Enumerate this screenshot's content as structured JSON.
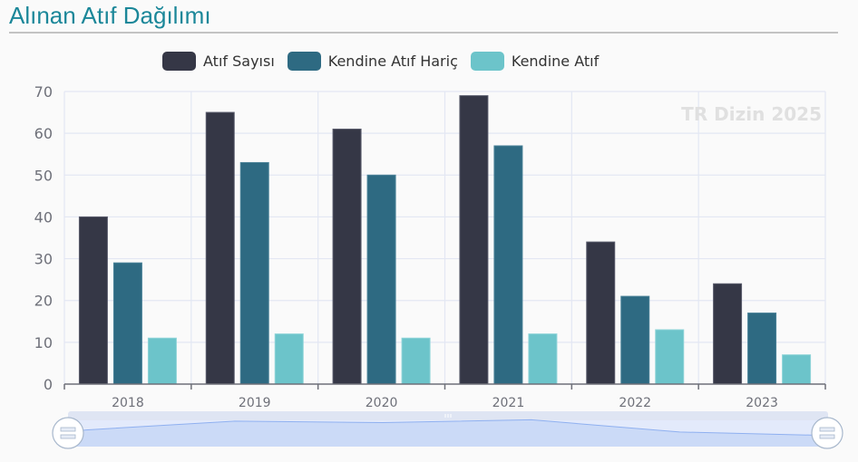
{
  "header": {
    "title": "Alınan Atıf Dağılımı"
  },
  "watermark": "TR Dizin 2025",
  "colors": {
    "title": "#1b8799",
    "series": [
      "#353746",
      "#2e6a82",
      "#6cc4ca"
    ],
    "grid": "#e3e7f3",
    "axis": "#6e7079"
  },
  "legend": {
    "items": [
      {
        "label": "Atıf Sayısı",
        "color": "#353746"
      },
      {
        "label": "Kendine Atıf Hariç",
        "color": "#2e6a82"
      },
      {
        "label": "Kendine Atıf",
        "color": "#6cc4ca"
      }
    ]
  },
  "chart_data": {
    "type": "bar",
    "title": "Alınan Atıf Dağılımı",
    "xlabel": "",
    "ylabel": "",
    "categories": [
      "2018",
      "2019",
      "2020",
      "2021",
      "2022",
      "2023"
    ],
    "series": [
      {
        "name": "Atıf Sayısı",
        "values": [
          40,
          65,
          61,
          69,
          34,
          24
        ]
      },
      {
        "name": "Kendine Atıf Hariç",
        "values": [
          29,
          53,
          50,
          57,
          21,
          17
        ]
      },
      {
        "name": "Kendine Atıf",
        "values": [
          11,
          12,
          11,
          12,
          13,
          7
        ]
      }
    ],
    "ylim": [
      0,
      70
    ],
    "yticks": [
      0,
      10,
      20,
      30,
      40,
      50,
      60,
      70
    ],
    "grid": true,
    "legend_position": "top",
    "watermark": "TR Dizin 2025",
    "datazoom": {
      "start_percent": 0,
      "end_percent": 100
    }
  }
}
